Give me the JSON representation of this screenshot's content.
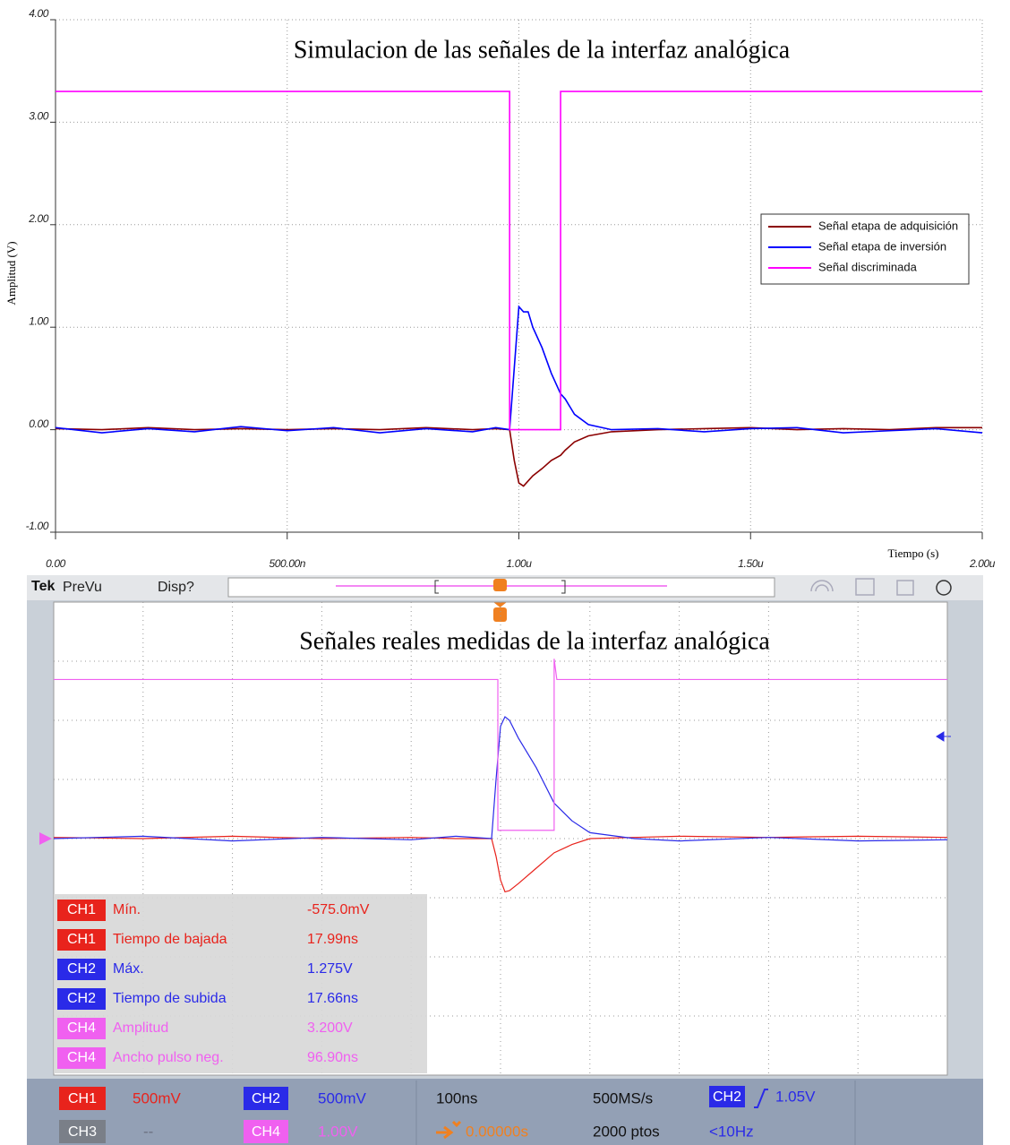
{
  "chart_data": [
    {
      "type": "line",
      "title": "Simulacion de las señales de la interfaz analógica",
      "xlabel": "Tiempo (s)",
      "ylabel": "Amplitud (V)",
      "xlim": [
        0,
        2e-06
      ],
      "ylim": [
        -1,
        4
      ],
      "xticks": [
        {
          "value": 0,
          "label": "0.00"
        },
        {
          "value": 5e-07,
          "label": "500.00n"
        },
        {
          "value": 1e-06,
          "label": "1.00u"
        },
        {
          "value": 1.5e-06,
          "label": "1.50u"
        },
        {
          "value": 2e-06,
          "label": "2.00u"
        }
      ],
      "yticks": [
        {
          "value": -1,
          "label": "-1.00"
        },
        {
          "value": 0,
          "label": "0.00"
        },
        {
          "value": 1,
          "label": "1.00"
        },
        {
          "value": 2,
          "label": "2.00"
        },
        {
          "value": 3,
          "label": "3.00"
        },
        {
          "value": 4,
          "label": "4.00"
        }
      ],
      "grid": true,
      "legend": "right",
      "series": [
        {
          "name": "Señal etapa de adquisición",
          "color": "#8b0000",
          "x": [
            0,
            1e-07,
            2e-07,
            3e-07,
            4e-07,
            5e-07,
            6e-07,
            7e-07,
            8e-07,
            9e-07,
            9.5e-07,
            9.8e-07,
            9.9e-07,
            1e-06,
            1.01e-06,
            1.02e-06,
            1.03e-06,
            1.05e-06,
            1.07e-06,
            1.09e-06,
            1.1e-06,
            1.12e-06,
            1.15e-06,
            1.2e-06,
            1.3e-06,
            1.4e-06,
            1.5e-06,
            1.6e-06,
            1.7e-06,
            1.8e-06,
            1.9e-06,
            2e-06
          ],
          "values": [
            0.01,
            0.0,
            0.02,
            0.0,
            0.01,
            0.0,
            0.01,
            0.0,
            0.02,
            0.0,
            0.01,
            0.0,
            -0.3,
            -0.52,
            -0.55,
            -0.5,
            -0.45,
            -0.38,
            -0.3,
            -0.25,
            -0.2,
            -0.12,
            -0.06,
            -0.02,
            0.0,
            0.01,
            0.02,
            0.0,
            0.01,
            0.0,
            0.02,
            0.02
          ]
        },
        {
          "name": "Señal etapa de inversión",
          "color": "#0000ff",
          "x": [
            0,
            1e-07,
            2e-07,
            3e-07,
            4e-07,
            5e-07,
            6e-07,
            7e-07,
            8e-07,
            9e-07,
            9.5e-07,
            9.8e-07,
            9.9e-07,
            1e-06,
            1.01e-06,
            1.02e-06,
            1.03e-06,
            1.05e-06,
            1.07e-06,
            1.09e-06,
            1.1e-06,
            1.12e-06,
            1.15e-06,
            1.2e-06,
            1.3e-06,
            1.4e-06,
            1.5e-06,
            1.6e-06,
            1.7e-06,
            1.8e-06,
            1.9e-06,
            2e-06
          ],
          "values": [
            0.02,
            -0.03,
            0.01,
            -0.02,
            0.03,
            -0.01,
            0.02,
            -0.03,
            0.01,
            -0.02,
            0.02,
            0.0,
            0.6,
            1.2,
            1.15,
            1.15,
            1.0,
            0.8,
            0.55,
            0.35,
            0.3,
            0.15,
            0.05,
            0.0,
            0.01,
            -0.02,
            0.01,
            0.02,
            -0.03,
            -0.01,
            0.01,
            -0.03
          ]
        },
        {
          "name": "Señal discriminada",
          "color": "#ff00ff",
          "x": [
            0,
            9.8e-07,
            9.8e-07,
            1.09e-06,
            1.09e-06,
            2e-06
          ],
          "values": [
            3.3,
            3.3,
            0,
            0,
            3.3,
            3.3
          ]
        }
      ]
    },
    {
      "type": "line",
      "title": "Señales reales medidas de la interfaz analógica",
      "xlim": [
        -500,
        500
      ],
      "ylim": [
        -2,
        2
      ],
      "y2lim": [
        -4.09,
        3.91
      ],
      "grid": true,
      "series": [
        {
          "color": "#e8231c",
          "x": [
            -500,
            -400,
            -300,
            -200,
            -100,
            -50,
            -10,
            -5,
            0,
            5,
            10,
            20,
            40,
            60,
            80,
            100,
            150,
            200,
            300,
            400,
            500
          ],
          "values": [
            0.01,
            0.0,
            0.02,
            0.0,
            0.01,
            0.0,
            0.0,
            -0.15,
            -0.35,
            -0.45,
            -0.44,
            -0.38,
            -0.25,
            -0.12,
            -0.05,
            0.0,
            0.01,
            0.02,
            0.01,
            0.02,
            0.01
          ]
        },
        {
          "color": "#2a2ae8",
          "x": [
            -500,
            -400,
            -300,
            -200,
            -100,
            -50,
            -10,
            -5,
            0,
            5,
            10,
            20,
            40,
            60,
            80,
            100,
            150,
            200,
            300,
            400,
            500
          ],
          "values": [
            0.0,
            0.02,
            -0.02,
            0.01,
            -0.01,
            0.02,
            0.0,
            0.5,
            0.95,
            1.03,
            1.0,
            0.85,
            0.6,
            0.3,
            0.15,
            0.05,
            0.0,
            -0.02,
            0.01,
            -0.02,
            -0.01
          ]
        },
        {
          "color": "#f060f0",
          "axis": "y2",
          "x": [
            -500,
            -3,
            -3,
            60,
            60,
            63,
            70,
            500
          ],
          "values": [
            2.6,
            2.6,
            0.05,
            0.05,
            2.95,
            2.6,
            2.6,
            2.6
          ]
        }
      ]
    }
  ],
  "scope_ui": {
    "toolbar": [
      "Tek",
      "PreVu",
      "Disp?"
    ],
    "measurements": [
      {
        "channel": "CH1",
        "color": "#e8231c",
        "name": "Mín.",
        "value": "-575.0mV"
      },
      {
        "channel": "CH1",
        "color": "#e8231c",
        "name": "Tiempo de bajada",
        "value": "17.99ns"
      },
      {
        "channel": "CH2",
        "color": "#2a2ae8",
        "name": "Máx.",
        "value": "1.275V"
      },
      {
        "channel": "CH2",
        "color": "#2a2ae8",
        "name": "Tiempo de subida",
        "value": "17.66ns"
      },
      {
        "channel": "CH4",
        "color": "#f060f0",
        "name": "Amplitud",
        "value": "3.200V"
      },
      {
        "channel": "CH4",
        "color": "#f060f0",
        "name": "Ancho pulso neg.",
        "value": "96.90ns"
      }
    ],
    "status": {
      "ch1": "CH1",
      "ch1_scale": "500mV",
      "ch2": "CH2",
      "ch2_scale": "500mV",
      "ch3": "CH3",
      "ch3_scale": "--",
      "ch4": "CH4",
      "ch4_scale": "1.00V",
      "horizontal_scale": "100ns",
      "position": "0.00000s",
      "sample_rate": "500MS/s",
      "record_length": "2000 ptos",
      "trigger_source": "CH2",
      "trigger_level": "1.05V",
      "trigger_frequency": "<10Hz"
    }
  }
}
